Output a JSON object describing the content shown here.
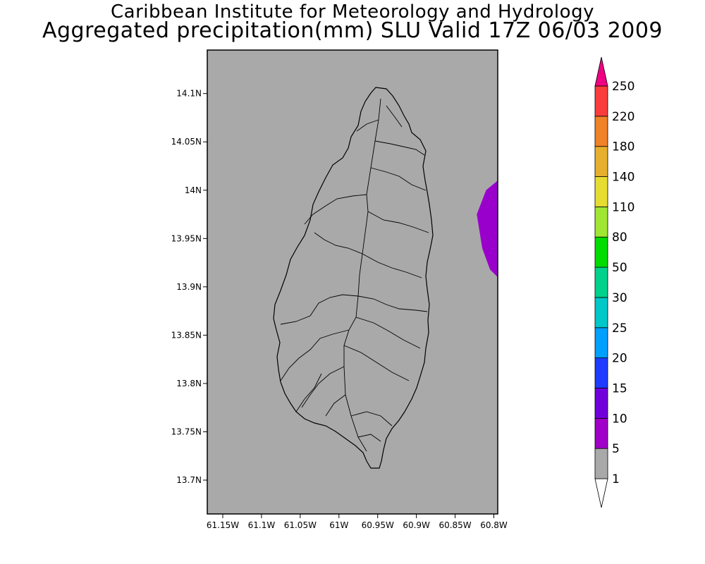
{
  "title": {
    "line1": "Caribbean Institute for Meteorology and Hydrology",
    "line2": "Aggregated precipitation(mm) SLU Valid 17Z 06/03 2009"
  },
  "map": {
    "background_color": "#a9a9a9",
    "frame_color": "#000000",
    "lon_range": [
      -61.17,
      -60.795
    ],
    "lat_range": [
      13.665,
      14.145
    ],
    "lon_ticks": [
      {
        "value": -61.15,
        "label": "61.15W"
      },
      {
        "value": -61.1,
        "label": "61.1W"
      },
      {
        "value": -61.05,
        "label": "61.05W"
      },
      {
        "value": -61.0,
        "label": "61W"
      },
      {
        "value": -60.95,
        "label": "60.95W"
      },
      {
        "value": -60.9,
        "label": "60.9W"
      },
      {
        "value": -60.85,
        "label": "60.85W"
      },
      {
        "value": -60.8,
        "label": "60.8W"
      }
    ],
    "lat_ticks": [
      {
        "value": 14.1,
        "label": "14.1N"
      },
      {
        "value": 14.05,
        "label": "14.05N"
      },
      {
        "value": 14.0,
        "label": "14N"
      },
      {
        "value": 13.95,
        "label": "13.95N"
      },
      {
        "value": 13.9,
        "label": "13.9N"
      },
      {
        "value": 13.85,
        "label": "13.85N"
      },
      {
        "value": 13.8,
        "label": "13.8N"
      },
      {
        "value": 13.75,
        "label": "13.75N"
      },
      {
        "value": 13.7,
        "label": "13.7N"
      }
    ],
    "precip_patch": {
      "color": "#9900cc",
      "category": "5-10",
      "outline_lonlat": [
        [
          -60.795,
          14.01
        ],
        [
          -60.81,
          14.0
        ],
        [
          -60.822,
          13.975
        ],
        [
          -60.815,
          13.94
        ],
        [
          -60.805,
          13.918
        ],
        [
          -60.795,
          13.91
        ]
      ]
    }
  },
  "colorbar": {
    "bins": [
      {
        "color": "#ffffff",
        "label": "1"
      },
      {
        "color": "#a9a9a9",
        "label": "5"
      },
      {
        "color": "#a000c8",
        "label": "10"
      },
      {
        "color": "#7200dc",
        "label": "15"
      },
      {
        "color": "#1e3cff",
        "label": "20"
      },
      {
        "color": "#00a0ff",
        "label": "25"
      },
      {
        "color": "#00c8c8",
        "label": "30"
      },
      {
        "color": "#00d28c",
        "label": "50"
      },
      {
        "color": "#00dc00",
        "label": "80"
      },
      {
        "color": "#a0e632",
        "label": "110"
      },
      {
        "color": "#e6dc32",
        "label": "140"
      },
      {
        "color": "#e6af2d",
        "label": "180"
      },
      {
        "color": "#f08228",
        "label": "220"
      },
      {
        "color": "#fa3c3c",
        "label": "250"
      },
      {
        "color": "#f00082",
        "label": ""
      }
    ]
  }
}
